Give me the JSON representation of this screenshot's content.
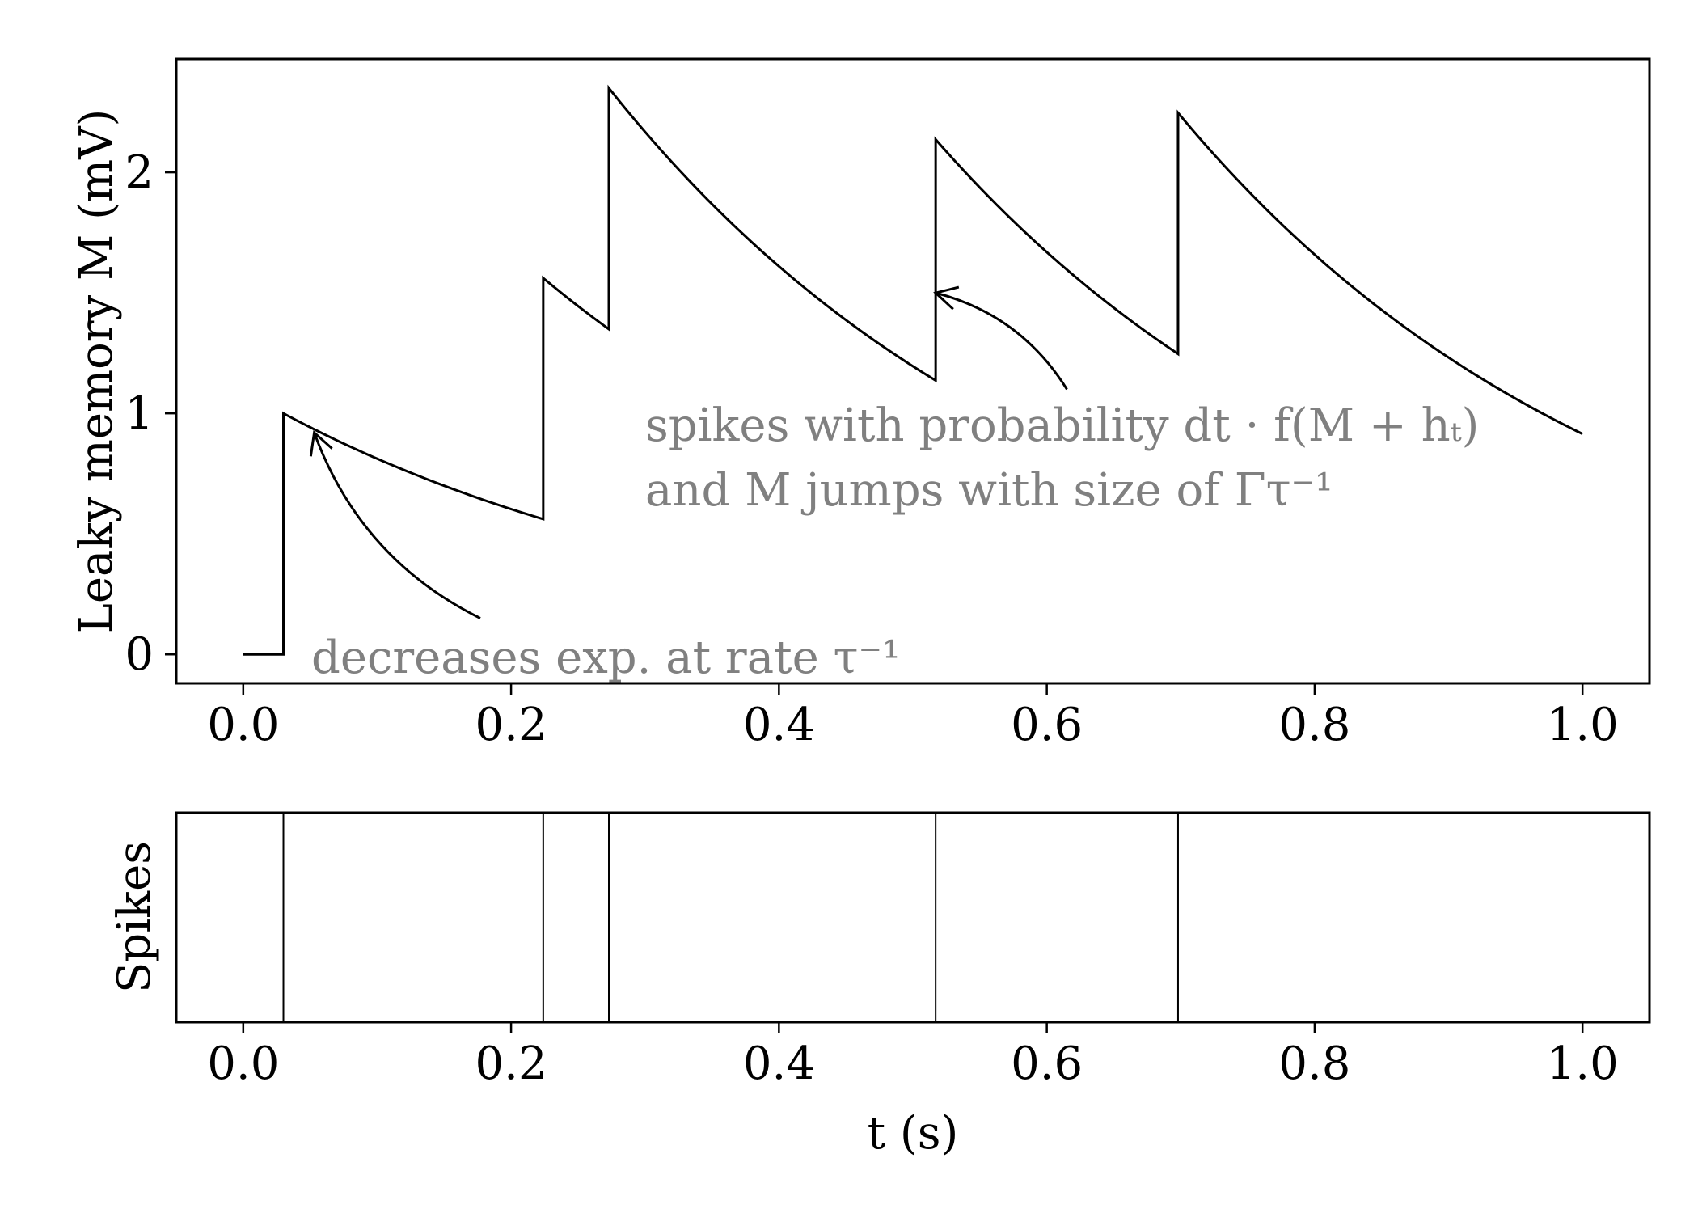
{
  "chart_data": [
    {
      "type": "line",
      "title": "",
      "xlabel": "",
      "ylabel": "Leaky memory M (mV)",
      "xlim": [
        -0.05,
        1.05
      ],
      "ylim": [
        -0.12,
        2.47
      ],
      "xticks": [
        0.0,
        0.2,
        0.4,
        0.6,
        0.8,
        1.0
      ],
      "xtick_labels": [
        "0.0",
        "0.2",
        "0.4",
        "0.6",
        "0.8",
        "1.0"
      ],
      "yticks": [
        0,
        1,
        2
      ],
      "ytick_labels": [
        "0",
        "1",
        "2"
      ],
      "grid": false,
      "spikes_t": [
        0.03,
        0.224,
        0.273,
        0.517,
        0.698
      ],
      "jump": 1.0,
      "tau": 0.336,
      "t_end": 1.0,
      "annotations": [
        {
          "text": "decreases exp. at rate τ⁻¹",
          "arrow_from": [
            0.177,
            0.15
          ],
          "arrow_to": [
            0.053,
            0.92
          ]
        },
        {
          "text_lines": [
            "spikes with probability dt · f(M + hₜ)",
            "and M jumps with size of Γτ⁻¹"
          ],
          "arrow_from": [
            0.615,
            1.1
          ],
          "arrow_to": [
            0.517,
            1.5
          ]
        }
      ]
    },
    {
      "type": "event",
      "title": "",
      "xlabel": "t (s)",
      "ylabel": "Spikes",
      "xlim": [
        -0.05,
        1.05
      ],
      "xticks": [
        0.0,
        0.2,
        0.4,
        0.6,
        0.8,
        1.0
      ],
      "xtick_labels": [
        "0.0",
        "0.2",
        "0.4",
        "0.6",
        "0.8",
        "1.0"
      ],
      "events": [
        0.03,
        0.224,
        0.273,
        0.517,
        0.698
      ]
    }
  ]
}
